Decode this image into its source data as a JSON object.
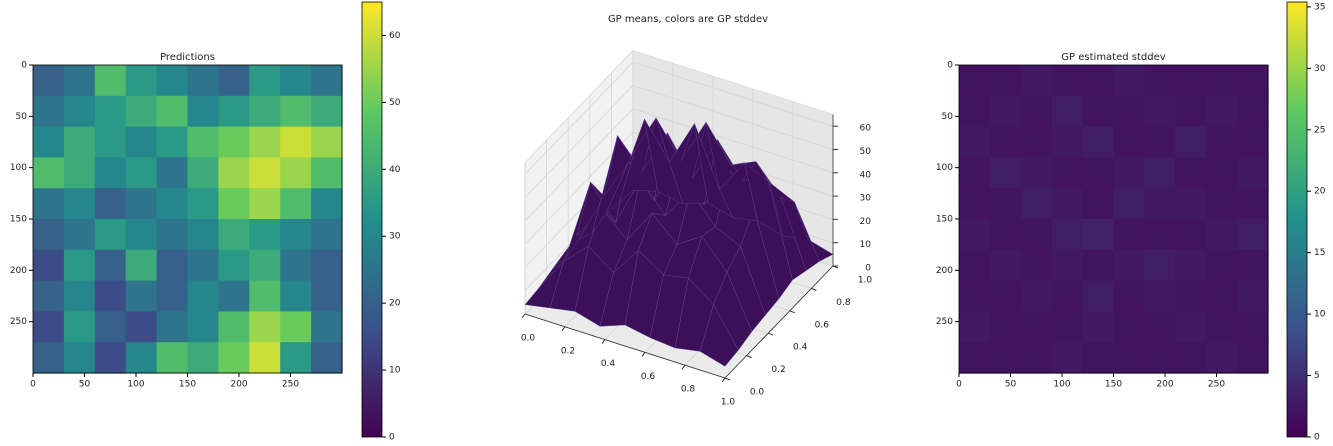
{
  "chart_data": [
    {
      "type": "heatmap",
      "title": "Predictions",
      "xlim": [
        0,
        300
      ],
      "ylim": [
        300,
        0
      ],
      "xticks": [
        0,
        50,
        100,
        150,
        200,
        250
      ],
      "yticks": [
        0,
        50,
        100,
        150,
        200,
        250
      ],
      "colormap": "viridis",
      "z": [
        [
          20,
          25,
          45,
          35,
          30,
          25,
          20,
          35,
          30,
          25
        ],
        [
          25,
          30,
          35,
          40,
          45,
          30,
          35,
          40,
          45,
          40
        ],
        [
          30,
          40,
          35,
          30,
          35,
          45,
          50,
          55,
          60,
          55
        ],
        [
          45,
          40,
          30,
          35,
          25,
          40,
          55,
          60,
          55,
          45
        ],
        [
          25,
          30,
          20,
          25,
          30,
          35,
          50,
          55,
          45,
          30
        ],
        [
          20,
          25,
          35,
          30,
          25,
          30,
          40,
          35,
          30,
          25
        ],
        [
          15,
          35,
          20,
          40,
          20,
          25,
          35,
          40,
          25,
          20
        ],
        [
          20,
          30,
          15,
          25,
          20,
          30,
          25,
          45,
          30,
          20
        ],
        [
          15,
          35,
          20,
          15,
          25,
          30,
          45,
          55,
          50,
          25
        ],
        [
          20,
          30,
          15,
          30,
          45,
          40,
          50,
          60,
          35,
          20
        ]
      ],
      "colorbar": {
        "lim": [
          0,
          65
        ],
        "ticks": [
          0,
          10,
          20,
          30,
          40,
          50,
          60
        ]
      }
    },
    {
      "type": "surface3d",
      "title": "GP means, colors are GP stddev",
      "color": "#3b0f5a",
      "xlim": [
        0,
        1
      ],
      "ylim": [
        0,
        1
      ],
      "zlim": [
        0,
        65
      ],
      "xticks": [
        {
          "value": 0,
          "label": "0.0"
        },
        {
          "value": 0.2,
          "label": "0.2"
        },
        {
          "value": 0.4,
          "label": "0.4"
        },
        {
          "value": 0.6,
          "label": "0.6"
        },
        {
          "value": 0.8,
          "label": "0.8"
        },
        {
          "value": 1,
          "label": "1.0"
        }
      ],
      "yticks": [
        {
          "value": 0,
          "label": "0.0"
        },
        {
          "value": 0.2,
          "label": "0.2"
        },
        {
          "value": 0.4,
          "label": "0.4"
        },
        {
          "value": 0.6,
          "label": "0.6"
        },
        {
          "value": 0.8,
          "label": "0.8"
        },
        {
          "value": 1,
          "label": "1.0"
        }
      ],
      "zticks": [
        0,
        10,
        20,
        30,
        40,
        50,
        60
      ],
      "z": [
        [
          5,
          8,
          6,
          10,
          7,
          9,
          6,
          8,
          5
        ],
        [
          6,
          45,
          30,
          50,
          25,
          40,
          35,
          30,
          8
        ],
        [
          7,
          35,
          55,
          40,
          60,
          45,
          50,
          38,
          10
        ],
        [
          5,
          50,
          38,
          58,
          42,
          62,
          48,
          52,
          12
        ],
        [
          8,
          30,
          48,
          35,
          55,
          40,
          58,
          45,
          10
        ],
        [
          6,
          42,
          28,
          50,
          38,
          52,
          40,
          35,
          9
        ],
        [
          7,
          25,
          40,
          30,
          45,
          35,
          42,
          30,
          8
        ],
        [
          5,
          20,
          30,
          22,
          35,
          28,
          30,
          22,
          6
        ],
        [
          4,
          6,
          8,
          5,
          9,
          7,
          6,
          8,
          5
        ]
      ]
    },
    {
      "type": "heatmap",
      "title": "GP estimated stddev",
      "xlim": [
        0,
        300
      ],
      "ylim": [
        300,
        0
      ],
      "xticks": [
        0,
        50,
        100,
        150,
        200,
        250
      ],
      "yticks": [
        0,
        50,
        100,
        150,
        200,
        250
      ],
      "colormap": "viridis",
      "z": [
        [
          2,
          2,
          2.5,
          2,
          2,
          2.5,
          2,
          2,
          2,
          2
        ],
        [
          2,
          2.5,
          2,
          3,
          2,
          2,
          2.5,
          2,
          2.5,
          2
        ],
        [
          2.5,
          2,
          2,
          2.5,
          3,
          2,
          2,
          3,
          2,
          2
        ],
        [
          2,
          3,
          2.5,
          2,
          2,
          2.5,
          3,
          2,
          2,
          2.5
        ],
        [
          2,
          2,
          3,
          2.5,
          2,
          3,
          2.5,
          2.5,
          2,
          2
        ],
        [
          2.5,
          2,
          2,
          3,
          3.5,
          2,
          2,
          2,
          2.5,
          3
        ],
        [
          2,
          2.5,
          2,
          2.5,
          2,
          2.5,
          3,
          2.5,
          2,
          2
        ],
        [
          2,
          2,
          2.5,
          2,
          3,
          2,
          2.5,
          2,
          2,
          2.5
        ],
        [
          2.5,
          2,
          2,
          2,
          2.5,
          2,
          2,
          2.5,
          2,
          2
        ],
        [
          2,
          2,
          2,
          2.5,
          2,
          2,
          2,
          2,
          2.5,
          2
        ]
      ],
      "colorbar": {
        "lim": [
          0,
          35.4
        ],
        "ticks": [
          0,
          5,
          10,
          15,
          20,
          25,
          30,
          35
        ]
      }
    }
  ]
}
